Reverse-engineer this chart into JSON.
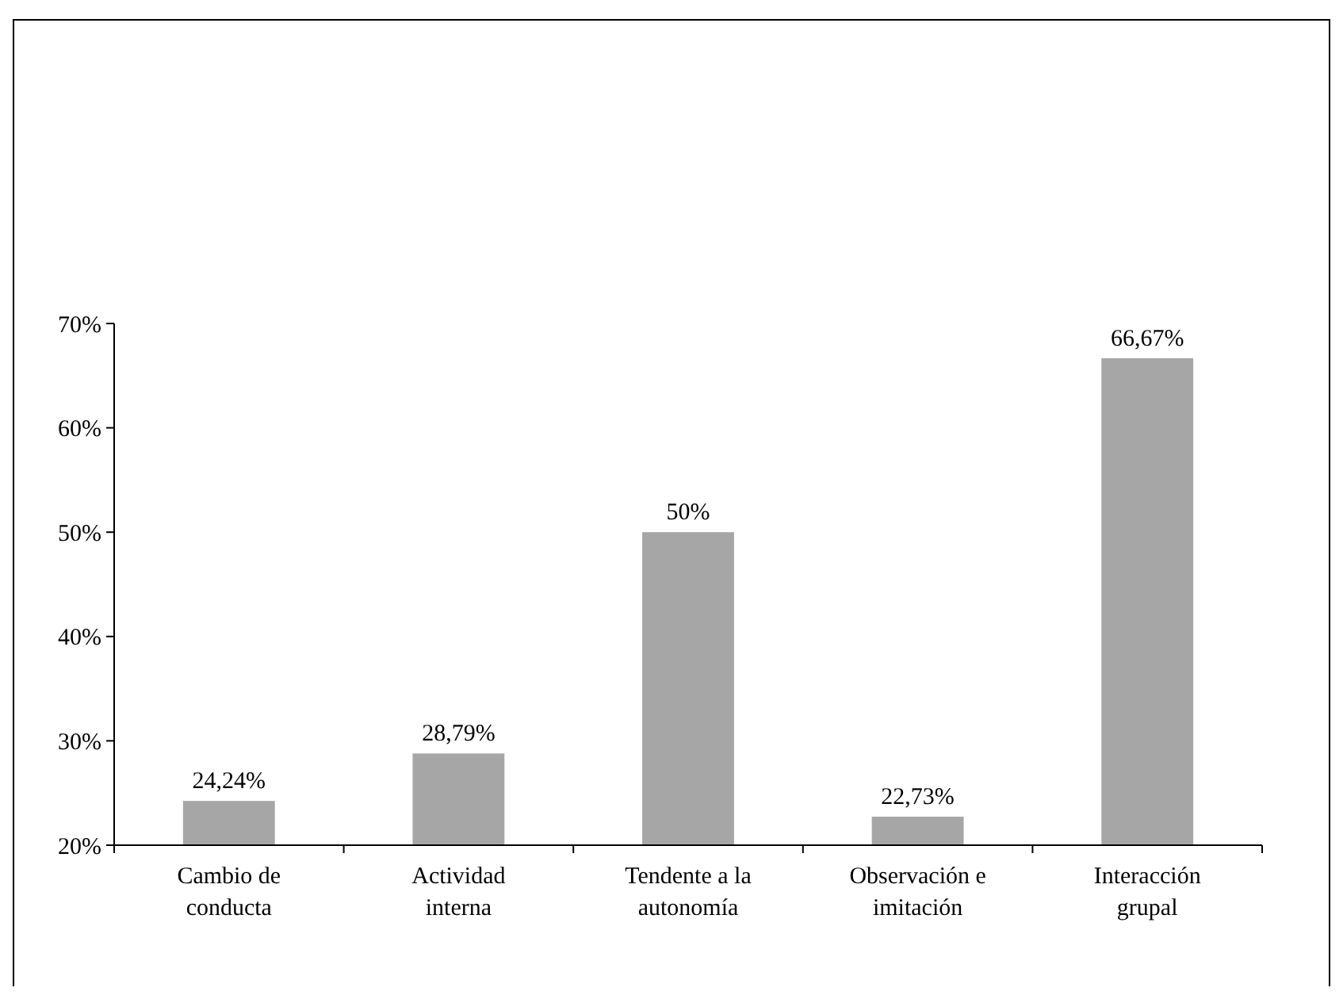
{
  "chart_data": {
    "type": "bar",
    "categories": [
      "Cambio de conducta",
      "Actividad interna",
      "Tendente a la autonomía",
      "Observación e imitación",
      "Interacción grupal"
    ],
    "values": [
      24.24,
      28.79,
      50,
      22.73,
      66.67
    ],
    "value_labels": [
      "24,24%",
      "28,79%",
      "50%",
      "22,73%",
      "66,67%"
    ],
    "color": "#a6a6a6",
    "ylim": [
      20,
      70
    ],
    "yticks": [
      {
        "value": 20,
        "label": "20%"
      },
      {
        "value": 30,
        "label": "30%"
      },
      {
        "value": 40,
        "label": "40%"
      },
      {
        "value": 50,
        "label": "50%"
      },
      {
        "value": 60,
        "label": "60%"
      },
      {
        "value": 70,
        "label": "70%"
      }
    ],
    "grid": false
  }
}
